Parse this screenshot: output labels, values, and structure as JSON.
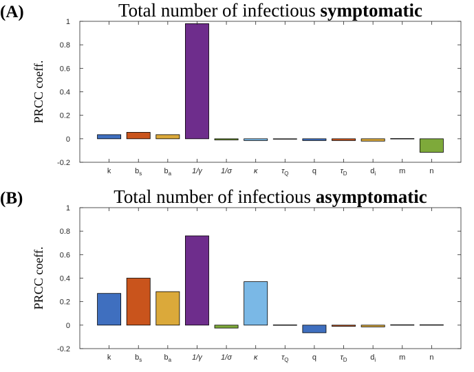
{
  "chart_data": [
    {
      "type": "bar",
      "panel_label": "(A)",
      "title_prefix": "Total number of infectious ",
      "title_bold": "symptomatic",
      "ylabel": "PRCC coeff.",
      "xlabel": "",
      "ylim": [
        -0.2,
        1
      ],
      "yticks": [
        "1",
        "0.8",
        "0.6",
        "0.4",
        "0.2",
        "0",
        "-0.2"
      ],
      "grid": false,
      "categories": [
        "k",
        "b_s",
        "b_a",
        "1/γ",
        "1/σ",
        "κ",
        "τ_Q",
        "q",
        "τ_D",
        "d_i",
        "m",
        "n"
      ],
      "values": [
        0.035,
        0.055,
        0.035,
        0.98,
        -0.01,
        -0.015,
        -0.003,
        -0.015,
        -0.015,
        -0.02,
        0.002,
        -0.115
      ],
      "colors": [
        "#3f6fbf",
        "#c9541c",
        "#dba93a",
        "#6e2d8c",
        "#7ea93a",
        "#7ab8e6",
        "#a0232f",
        "#3f6fbf",
        "#c9541c",
        "#dba93a",
        "#6e2d8c",
        "#7ea93a"
      ]
    },
    {
      "type": "bar",
      "panel_label": "(B)",
      "title_prefix": "Total number of infectious ",
      "title_bold": "asymptomatic",
      "ylabel": "PRCC coeff.",
      "xlabel": "",
      "ylim": [
        -0.2,
        1
      ],
      "yticks": [
        "1",
        "0.8",
        "0.6",
        "0.4",
        "0.2",
        "0",
        "-0.2"
      ],
      "grid": false,
      "categories": [
        "k",
        "b_s",
        "b_a",
        "1/γ",
        "1/σ",
        "κ",
        "τ_Q",
        "q",
        "τ_D",
        "d_i",
        "m",
        "n"
      ],
      "values": [
        0.27,
        0.4,
        0.285,
        0.76,
        -0.025,
        0.37,
        0.002,
        -0.065,
        -0.01,
        -0.015,
        0.003,
        0.003
      ],
      "colors": [
        "#3f6fbf",
        "#c9541c",
        "#dba93a",
        "#6e2d8c",
        "#7ea93a",
        "#7ab8e6",
        "#a0232f",
        "#3f6fbf",
        "#c9541c",
        "#dba93a",
        "#6e2d8c",
        "#7ea93a"
      ]
    }
  ]
}
